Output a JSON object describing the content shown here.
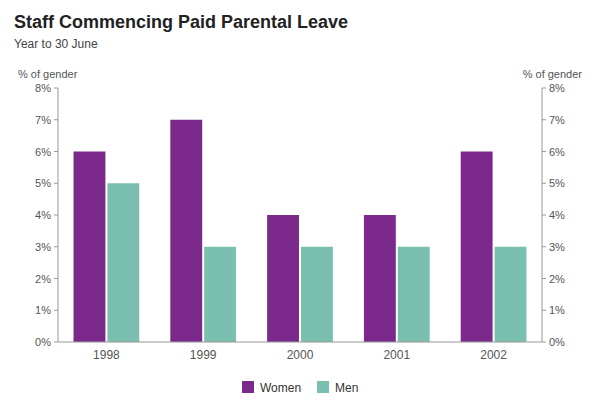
{
  "chart_data": {
    "type": "bar",
    "title": "Staff Commencing Paid Parental Leave",
    "subtitle": "Year to 30 June",
    "categories": [
      "1998",
      "1999",
      "2000",
      "2001",
      "2002"
    ],
    "series": [
      {
        "name": "Women",
        "color": "#7B2A8C",
        "values": [
          6,
          7,
          4,
          4,
          6
        ]
      },
      {
        "name": "Men",
        "color": "#7BBFB0",
        "values": [
          5,
          3,
          3,
          3,
          3
        ]
      }
    ],
    "ylabel": "% of gender",
    "y2label": "% of gender",
    "ylim": [
      0,
      8
    ],
    "yticks": [
      {
        "value": 0,
        "label": "0%"
      },
      {
        "value": 1,
        "label": "1%"
      },
      {
        "value": 2,
        "label": "2%"
      },
      {
        "value": 3,
        "label": "3%"
      },
      {
        "value": 4,
        "label": "4%"
      },
      {
        "value": 5,
        "label": "5%"
      },
      {
        "value": 6,
        "label": "6%"
      },
      {
        "value": 7,
        "label": "7%"
      },
      {
        "value": 8,
        "label": "8%"
      }
    ],
    "y2lim": [
      0,
      8
    ],
    "y2ticks": [
      {
        "value": 0,
        "label": "0%"
      },
      {
        "value": 1,
        "label": "1%"
      },
      {
        "value": 2,
        "label": "2%"
      },
      {
        "value": 3,
        "label": "3%"
      },
      {
        "value": 4,
        "label": "4%"
      },
      {
        "value": 5,
        "label": "5%"
      },
      {
        "value": 6,
        "label": "6%"
      },
      {
        "value": 7,
        "label": "7%"
      },
      {
        "value": 8,
        "label": "8%"
      }
    ],
    "grid": false,
    "legend": "bottom"
  }
}
